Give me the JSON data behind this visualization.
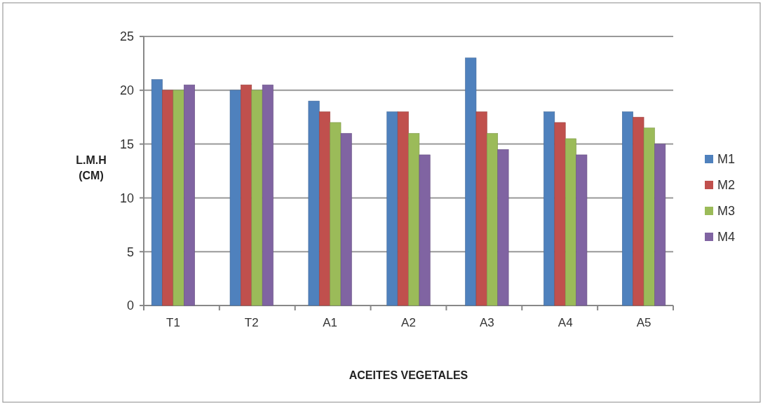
{
  "chart_data": {
    "type": "bar",
    "xlabel": "ACEITES VEGETALES",
    "ylabel": "L.M.H\n(CM)",
    "categories": [
      "T1",
      "T2",
      "A1",
      "A2",
      "A3",
      "A4",
      "A5"
    ],
    "series": [
      {
        "name": "M1",
        "color": "#4f81bd",
        "values": [
          21,
          20,
          19,
          18,
          23,
          18,
          18
        ]
      },
      {
        "name": "M2",
        "color": "#c0504d",
        "values": [
          20,
          20.5,
          18,
          18,
          18,
          17,
          17.5
        ]
      },
      {
        "name": "M3",
        "color": "#9bbb59",
        "values": [
          20,
          20,
          17,
          16,
          16,
          15.5,
          16.5
        ]
      },
      {
        "name": "M4",
        "color": "#8064a2",
        "values": [
          20.5,
          20.5,
          16,
          14,
          14.5,
          14,
          15
        ]
      }
    ],
    "ylim": [
      0,
      25
    ],
    "yticks": [
      0,
      5,
      10,
      15,
      20,
      25
    ],
    "grid": "y",
    "legend": "right"
  }
}
